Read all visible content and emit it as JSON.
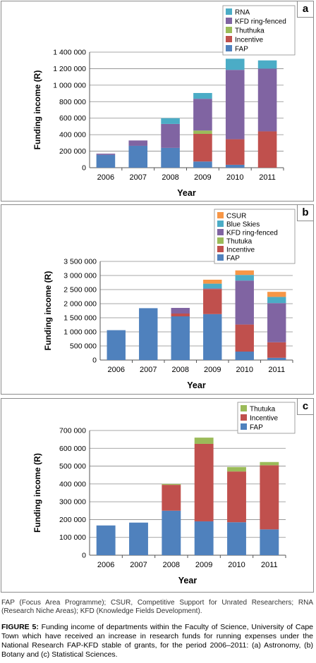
{
  "chart_data": [
    {
      "panel_label": "a",
      "type": "bar",
      "stacked": true,
      "categories": [
        "2006",
        "2007",
        "2008",
        "2009",
        "2010",
        "2011"
      ],
      "series": [
        {
          "name": "FAP",
          "color": "#4f81bd",
          "values": [
            155000,
            265000,
            240000,
            75000,
            35000,
            0
          ]
        },
        {
          "name": "Incentive",
          "color": "#c0504d",
          "values": [
            0,
            0,
            0,
            335000,
            310000,
            440000
          ]
        },
        {
          "name": "Thuthuka",
          "color": "#9bbb59",
          "values": [
            0,
            0,
            0,
            40000,
            0,
            0
          ]
        },
        {
          "name": "KFD ring-fenced",
          "color": "#8064a2",
          "values": [
            15000,
            65000,
            290000,
            385000,
            840000,
            760000
          ]
        },
        {
          "name": "RNA",
          "color": "#4bacc6",
          "values": [
            0,
            0,
            70000,
            70000,
            135000,
            100000
          ]
        }
      ],
      "ylim": [
        0,
        1400000
      ],
      "yticks": [
        "0",
        "200 000",
        "400 000",
        "600 000",
        "800 000",
        "1 000 000",
        "1 200 000",
        "1 400 000"
      ],
      "ylabel": "Funding income (R)",
      "xlabel": "Year",
      "legend_position": "top-right"
    },
    {
      "panel_label": "b",
      "type": "bar",
      "stacked": true,
      "categories": [
        "2006",
        "2007",
        "2008",
        "2009",
        "2010",
        "2011"
      ],
      "series": [
        {
          "name": "FAP",
          "color": "#4f81bd",
          "values": [
            1060000,
            1840000,
            1550000,
            1630000,
            300000,
            80000
          ]
        },
        {
          "name": "Incentive",
          "color": "#c0504d",
          "values": [
            0,
            0,
            100000,
            890000,
            960000,
            550000
          ]
        },
        {
          "name": "Thutuka",
          "color": "#9bbb59",
          "values": [
            0,
            0,
            0,
            0,
            0,
            0
          ]
        },
        {
          "name": "KFD ring-fenced",
          "color": "#8064a2",
          "values": [
            0,
            0,
            200000,
            20000,
            1560000,
            1390000
          ]
        },
        {
          "name": "Blue Skies",
          "color": "#4bacc6",
          "values": [
            0,
            0,
            0,
            170000,
            200000,
            220000
          ]
        },
        {
          "name": "CSUR",
          "color": "#f79646",
          "values": [
            0,
            0,
            0,
            140000,
            160000,
            180000
          ]
        }
      ],
      "ylim": [
        0,
        3500000
      ],
      "yticks": [
        "0",
        "500 000",
        "1 000 000",
        "1 500 000",
        "2 000 000",
        "2 500 000",
        "3 000 000",
        "3 500 000"
      ],
      "ylabel": "Funding income (R)",
      "xlabel": "Year",
      "legend_position": "top-right"
    },
    {
      "panel_label": "c",
      "type": "bar",
      "stacked": true,
      "categories": [
        "2006",
        "2007",
        "2008",
        "2009",
        "2010",
        "2011"
      ],
      "series": [
        {
          "name": "FAP",
          "color": "#4f81bd",
          "values": [
            167000,
            183000,
            250000,
            190000,
            185000,
            145000
          ]
        },
        {
          "name": "Incentive",
          "color": "#c0504d",
          "values": [
            0,
            0,
            145000,
            435000,
            285000,
            360000
          ]
        },
        {
          "name": "Thutuka",
          "color": "#9bbb59",
          "values": [
            0,
            0,
            5000,
            35000,
            25000,
            18000
          ]
        }
      ],
      "ylim": [
        0,
        700000
      ],
      "yticks": [
        "0",
        "100 000",
        "200 000",
        "300 000",
        "400 000",
        "500 000",
        "600 000",
        "700 000"
      ],
      "ylabel": "Funding income (R)",
      "xlabel": "Year",
      "legend_position": "top-right"
    }
  ],
  "footnote": "FAP (Focus Area Programme); CSUR, Competitive Support for Unrated Researchers; RNA (Research Niche Areas); KFD (Knowledge Fields Development).",
  "caption": {
    "label": "FIGURE 5:",
    "text": " Funding income of departments within the Faculty of Science, University of Cape Town which have received an increase in research funds for running expenses under the National Research FAP-KFD stable of grants, for the period 2006–2011: (a) Astronomy, (b) Botany and (c) Statistical Sciences."
  }
}
